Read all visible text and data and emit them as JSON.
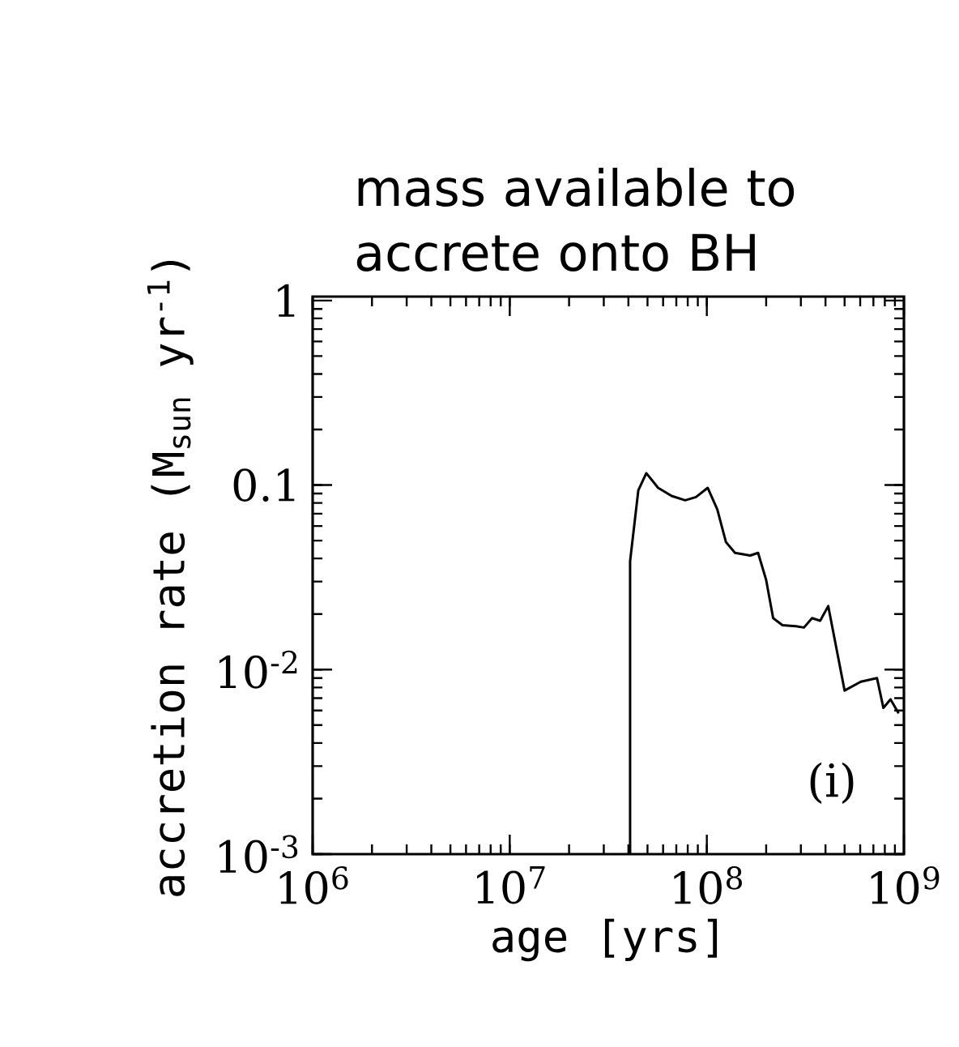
{
  "chart_data": {
    "type": "line",
    "title": "mass available to accrete onto BH",
    "xlabel": "age [yrs]",
    "ylabel": "accretion rate (M$_{sun}$  yr$^{-1}$)",
    "annotations": [
      "(i)"
    ],
    "log": "xy",
    "xlim": [
      1000000,
      1000000000
    ],
    "ylim": [
      0.001,
      1.05
    ],
    "xticks": [
      {
        "value": 1000000,
        "label": "10$^{6}$"
      },
      {
        "value": 10000000,
        "label": "10$^{7}$"
      },
      {
        "value": 100000000,
        "label": "10$^{8}$"
      },
      {
        "value": 1000000000,
        "label": "10$^{9}$"
      }
    ],
    "yticks": [
      {
        "value": 0.001,
        "label": "10$^{-3}$"
      },
      {
        "value": 0.01,
        "label": "10$^{-2}$"
      },
      0.1,
      1
    ],
    "x": [
      40800000,
      40800000,
      44900000,
      49300000,
      56600000,
      66300000,
      77700000,
      88100000,
      101000000,
      113000000,
      125000000,
      139000000,
      166000000,
      182000000,
      200000000,
      217000000,
      242000000,
      283000000,
      311000000,
      342000000,
      376000000,
      413000000,
      454000000,
      500000000,
      604000000,
      730000000,
      787000000,
      855000000,
      940000000
    ],
    "series": [
      {
        "color": "#000000",
        "values": [
          0.001,
          0.0387,
          0.0935,
          0.116,
          0.0966,
          0.0873,
          0.0827,
          0.0861,
          0.0966,
          0.0738,
          0.0491,
          0.0429,
          0.0415,
          0.0429,
          0.0306,
          0.019,
          0.0174,
          0.0172,
          0.0169,
          0.019,
          0.0184,
          0.0221,
          0.0131,
          0.0077,
          0.0086,
          0.009,
          0.0062,
          0.0069,
          0.0058
        ]
      }
    ]
  }
}
